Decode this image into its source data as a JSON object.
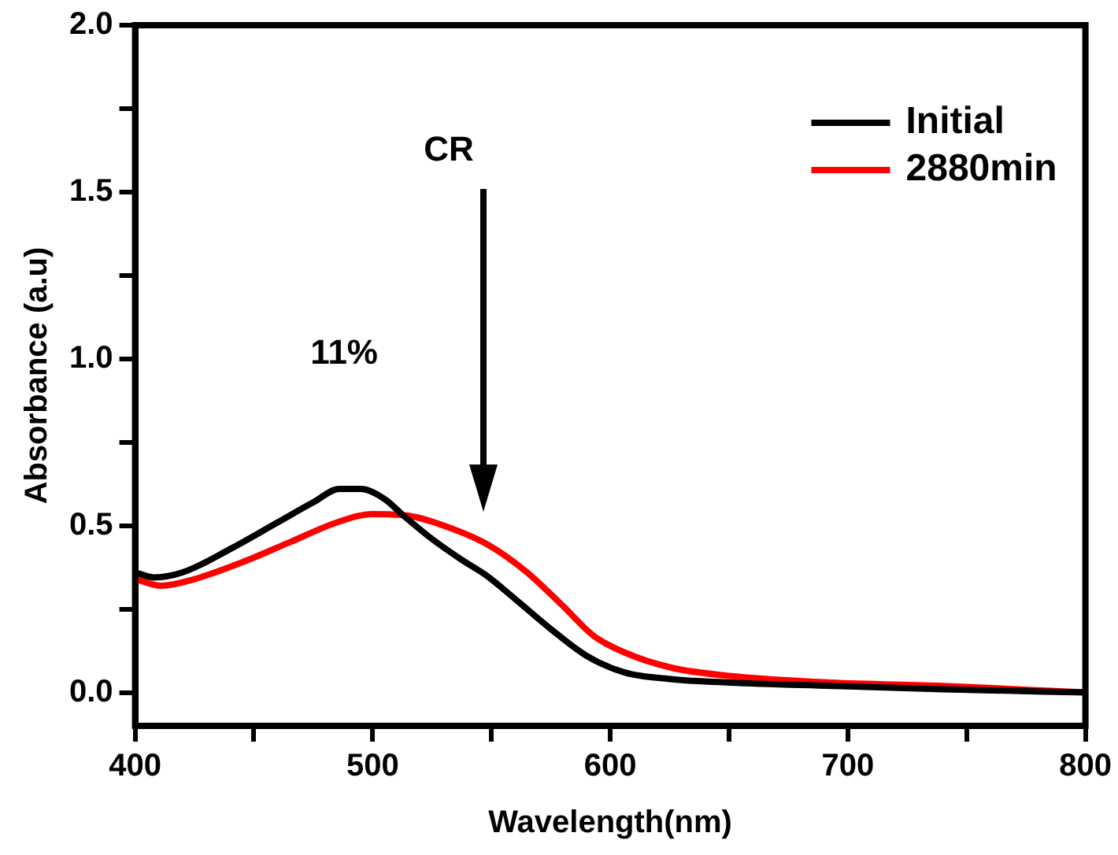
{
  "chart_data": {
    "type": "line",
    "xlabel": "Wavelength(nm)",
    "ylabel": "Absorbance (a.u)",
    "annotations": [
      "CR",
      "11%"
    ],
    "series": [
      {
        "name": "Initial",
        "color": "#000000",
        "x": [
          400,
          408,
          420,
          440,
          460,
          475,
          486,
          495,
          505,
          513,
          525,
          537,
          548,
          560,
          575,
          590,
          606,
          626,
          650,
          693,
          740,
          800
        ],
        "values": [
          0.36,
          0.345,
          0.36,
          0.43,
          0.51,
          0.57,
          0.61,
          0.61,
          0.58,
          0.53,
          0.46,
          0.4,
          0.35,
          0.28,
          0.19,
          0.11,
          0.06,
          0.04,
          0.03,
          0.02,
          0.01,
          0.0
        ]
      },
      {
        "name": "2880min",
        "color": "#ff0000",
        "x": [
          400,
          411,
          425,
          445,
          465,
          485,
          500,
          515,
          530,
          548,
          565,
          580,
          593,
          606,
          626,
          650,
          693,
          740,
          800
        ],
        "values": [
          0.34,
          0.32,
          0.34,
          0.39,
          0.45,
          0.51,
          0.535,
          0.53,
          0.5,
          0.445,
          0.36,
          0.26,
          0.17,
          0.12,
          0.074,
          0.05,
          0.03,
          0.02,
          0.0
        ]
      }
    ],
    "xlim": [
      400,
      800
    ],
    "xticks": [
      400,
      {
        "value": 450,
        "label": null
      },
      500,
      {
        "value": 550,
        "label": null
      },
      600,
      {
        "value": 650,
        "label": null
      },
      700,
      {
        "value": 750,
        "label": null
      },
      800
    ],
    "ylim": [
      -0.1,
      2.0
    ],
    "yticks": [
      {
        "value": 0,
        "label": "0.0"
      },
      {
        "value": 0.25,
        "label": null
      },
      0.5,
      {
        "value": 0.75,
        "label": null
      },
      {
        "value": 1.0,
        "label": "1.0"
      },
      {
        "value": 1.25,
        "label": null
      },
      1.5,
      {
        "value": 1.75,
        "label": null
      },
      {
        "value": 2.0,
        "label": "2.0"
      }
    ],
    "grid": false,
    "legend": "top right",
    "marker": "none",
    "line_style": "solid"
  }
}
